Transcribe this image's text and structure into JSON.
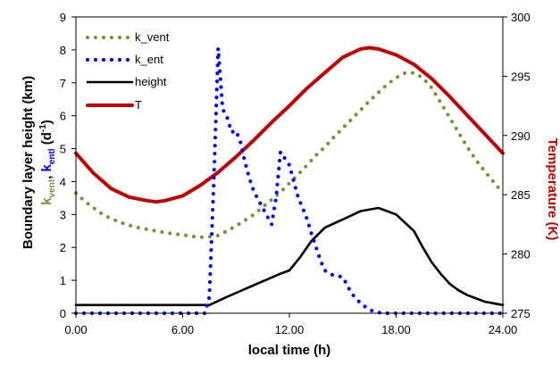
{
  "chart_data": {
    "type": "line",
    "xlabel": "local time (h)",
    "ylabel_left_main": "Boundary layer height (km)",
    "ylabel_left_k": "k",
    "ylabel_left_vent_sub": "vent",
    "ylabel_left_sep": ", ",
    "ylabel_left_ent_k": "k",
    "ylabel_left_ent_sub": "entl",
    "ylabel_left_units_open": " (d",
    "ylabel_left_units_sup": "-1",
    "ylabel_left_units_close": ")",
    "ylabel_right": "Temperature (K)",
    "xlim": [
      0,
      24
    ],
    "ylim_left": [
      0,
      9
    ],
    "ylim_right": [
      275,
      300
    ],
    "x_ticks": [
      0,
      6,
      12,
      18,
      24
    ],
    "x_tick_labels": [
      "0.00",
      "6.00",
      "12.00",
      "18.00",
      "24.00"
    ],
    "y_left_ticks": [
      0,
      1,
      2,
      3,
      4,
      5,
      6,
      7,
      8,
      9
    ],
    "y_left_tick_labels": [
      "0",
      "1",
      "2",
      "3",
      "4",
      "5",
      "6",
      "7",
      "8",
      "9"
    ],
    "y_right_ticks": [
      275,
      280,
      285,
      290,
      295,
      300
    ],
    "y_right_tick_labels": [
      "275",
      "280",
      "285",
      "290",
      "295",
      "300"
    ],
    "legend_position": "top-left",
    "colors": {
      "k_vent": "#77933c",
      "k_ent": "#0000ff",
      "height": "#000000",
      "T": "#c00000",
      "ylabel_main": "#000000"
    },
    "series": [
      {
        "name": "k_vent",
        "axis": "left",
        "style": "dotted",
        "x": [
          0,
          0.5,
          1,
          1.5,
          2,
          2.5,
          3,
          3.5,
          4,
          4.5,
          5,
          5.5,
          6,
          6.5,
          7,
          7.5,
          8,
          8.5,
          9,
          9.5,
          10,
          10.5,
          11,
          11.5,
          12,
          12.5,
          13,
          13.5,
          14,
          14.5,
          15,
          15.5,
          16,
          16.5,
          17,
          17.5,
          18,
          18.5,
          19,
          19.5,
          20,
          20.5,
          21,
          21.5,
          22,
          22.5,
          23,
          23.5,
          24
        ],
        "values": [
          3.65,
          3.4,
          3.2,
          3.0,
          2.87,
          2.76,
          2.67,
          2.6,
          2.55,
          2.5,
          2.45,
          2.41,
          2.38,
          2.34,
          2.31,
          2.32,
          2.36,
          2.5,
          2.65,
          2.82,
          3.0,
          3.22,
          3.45,
          3.68,
          3.95,
          4.22,
          4.5,
          4.8,
          5.05,
          5.35,
          5.62,
          5.9,
          6.17,
          6.45,
          6.7,
          6.95,
          7.15,
          7.3,
          7.3,
          7.15,
          6.85,
          6.4,
          5.95,
          5.5,
          5.05,
          4.65,
          4.3,
          3.98,
          3.65
        ]
      },
      {
        "name": "k_ent",
        "axis": "left",
        "style": "dotted",
        "x": [
          0,
          7.25,
          7.5,
          7.75,
          8.0,
          8.25,
          8.5,
          8.75,
          9.0,
          9.25,
          9.5,
          9.75,
          10.0,
          10.25,
          10.5,
          10.75,
          11.0,
          11.25,
          11.5,
          11.75,
          12.0,
          12.25,
          12.5,
          12.75,
          13.0,
          13.25,
          13.5,
          13.75,
          14.0,
          14.25,
          14.5,
          15.0,
          15.5,
          16.0,
          16.5,
          17.0,
          17.5,
          24
        ],
        "values": [
          0,
          0,
          0.5,
          4.0,
          8.05,
          6.2,
          5.95,
          5.5,
          5.55,
          5.2,
          4.6,
          4.1,
          3.7,
          3.45,
          3.2,
          2.95,
          2.7,
          3.5,
          4.9,
          4.7,
          4.5,
          4.0,
          3.5,
          3.2,
          2.85,
          2.4,
          2.0,
          1.6,
          1.3,
          1.2,
          1.15,
          1.1,
          0.6,
          0.3,
          0.1,
          0.02,
          0,
          0
        ]
      },
      {
        "name": "height",
        "axis": "left",
        "style": "solid",
        "x": [
          0,
          7.5,
          8.5,
          10,
          11.5,
          12,
          12.6,
          13.25,
          14,
          15,
          16,
          17,
          18,
          19,
          19.5,
          20,
          20.5,
          21,
          21.5,
          22,
          23,
          24
        ],
        "values": [
          0.25,
          0.25,
          0.5,
          0.85,
          1.2,
          1.3,
          1.7,
          2.2,
          2.6,
          2.85,
          3.1,
          3.2,
          3.0,
          2.5,
          2.0,
          1.55,
          1.2,
          0.9,
          0.7,
          0.55,
          0.35,
          0.25
        ]
      },
      {
        "name": "T",
        "axis": "right",
        "style": "solid",
        "x": [
          0,
          1,
          2,
          3,
          4,
          4.5,
          5,
          6,
          7,
          8,
          9,
          10,
          11,
          12,
          13,
          14,
          15,
          16,
          16.5,
          17,
          18,
          19,
          20,
          21,
          22,
          23,
          24
        ],
        "values": [
          288.5,
          286.8,
          285.5,
          284.8,
          284.5,
          284.4,
          284.5,
          284.9,
          285.8,
          286.9,
          288.2,
          289.6,
          291.1,
          292.5,
          294.0,
          295.3,
          296.6,
          297.3,
          297.4,
          297.3,
          296.8,
          296.0,
          294.8,
          293.3,
          291.7,
          290.1,
          288.5
        ]
      }
    ]
  }
}
